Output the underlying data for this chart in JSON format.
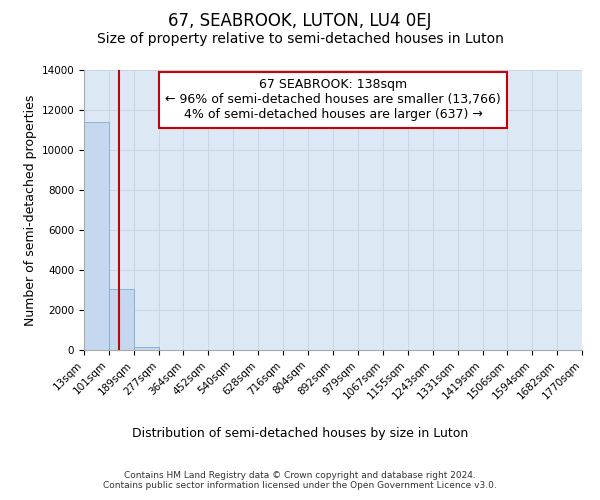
{
  "title": "67, SEABROOK, LUTON, LU4 0EJ",
  "subtitle": "Size of property relative to semi-detached houses in Luton",
  "xlabel": "Distribution of semi-detached houses by size in Luton",
  "ylabel": "Number of semi-detached properties",
  "annotation_line1": "67 SEABROOK: 138sqm",
  "annotation_line2": "← 96% of semi-detached houses are smaller (13,766)",
  "annotation_line3": "4% of semi-detached houses are larger (637) →",
  "property_size_sqm": 138,
  "bin_edges": [
    13,
    101,
    189,
    277,
    364,
    452,
    540,
    628,
    716,
    804,
    892,
    979,
    1067,
    1155,
    1243,
    1331,
    1419,
    1506,
    1594,
    1682,
    1770
  ],
  "bin_counts": [
    11400,
    3050,
    175,
    0,
    0,
    0,
    0,
    0,
    0,
    0,
    0,
    0,
    0,
    0,
    0,
    0,
    0,
    0,
    0,
    0
  ],
  "bar_color": "#c5d8ef",
  "bar_edge_color": "#7aadd4",
  "line_color": "#cc0000",
  "annotation_box_edge_color": "#cc0000",
  "annotation_box_face_color": "#ffffff",
  "grid_color": "#c8d4e8",
  "background_color": "#dde8f5",
  "ylim": [
    0,
    14000
  ],
  "yticks": [
    0,
    2000,
    4000,
    6000,
    8000,
    10000,
    12000,
    14000
  ],
  "tick_labels": [
    "13sqm",
    "101sqm",
    "189sqm",
    "277sqm",
    "364sqm",
    "452sqm",
    "540sqm",
    "628sqm",
    "716sqm",
    "804sqm",
    "892sqm",
    "979sqm",
    "1067sqm",
    "1155sqm",
    "1243sqm",
    "1331sqm",
    "1419sqm",
    "1506sqm",
    "1594sqm",
    "1682sqm",
    "1770sqm"
  ],
  "footer_line1": "Contains HM Land Registry data © Crown copyright and database right 2024.",
  "footer_line2": "Contains public sector information licensed under the Open Government Licence v3.0.",
  "title_fontsize": 12,
  "subtitle_fontsize": 10,
  "axis_label_fontsize": 9,
  "tick_fontsize": 7.5,
  "annotation_fontsize": 9,
  "footer_fontsize": 6.5
}
